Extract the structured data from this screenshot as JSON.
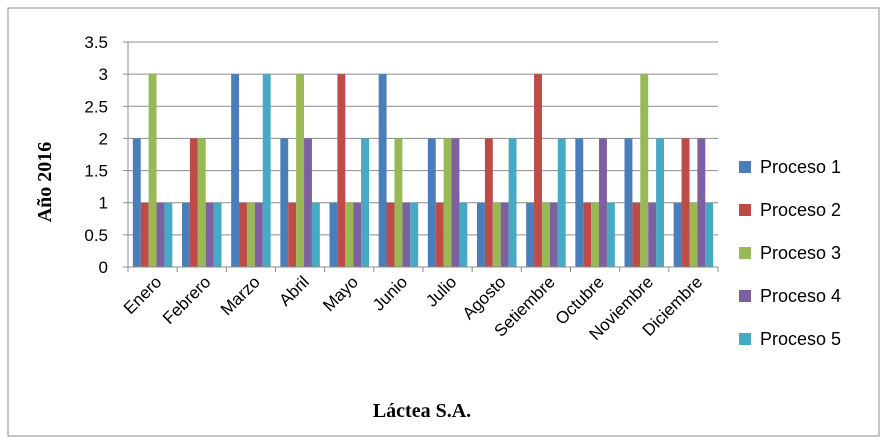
{
  "chart_data": {
    "type": "bar",
    "title": "",
    "xlabel": "Láctea S.A.",
    "ylabel": "Año 2016",
    "ylim": [
      0,
      3.5
    ],
    "yticks": [
      "0",
      "0.5",
      "1",
      "1.5",
      "2",
      "2.5",
      "3",
      "3.5"
    ],
    "grid": true,
    "legend_position": "right",
    "categories": [
      "Enero",
      "Febrero",
      "Marzo",
      "Abril",
      "Mayo",
      "Junio",
      "Julio",
      "Agosto",
      "Setiembre",
      "Octubre",
      "Noviembre",
      "Diciembre"
    ],
    "series": [
      {
        "name": "Proceso 1",
        "color": "#4a7ebb",
        "values": [
          2,
          1,
          3,
          2,
          1,
          3,
          2,
          1,
          1,
          2,
          2,
          1
        ]
      },
      {
        "name": "Proceso 2",
        "color": "#be4b48",
        "values": [
          1,
          2,
          1,
          1,
          3,
          1,
          1,
          2,
          3,
          1,
          1,
          2
        ]
      },
      {
        "name": "Proceso 3",
        "color": "#98b954",
        "values": [
          3,
          2,
          1,
          3,
          1,
          2,
          2,
          1,
          1,
          1,
          3,
          1
        ]
      },
      {
        "name": "Proceso 4",
        "color": "#7d60a0",
        "values": [
          1,
          1,
          1,
          2,
          1,
          1,
          2,
          1,
          1,
          2,
          1,
          2
        ]
      },
      {
        "name": "Proceso 5",
        "color": "#46aac5",
        "values": [
          1,
          1,
          3,
          1,
          2,
          1,
          1,
          2,
          2,
          1,
          2,
          1
        ]
      }
    ]
  }
}
